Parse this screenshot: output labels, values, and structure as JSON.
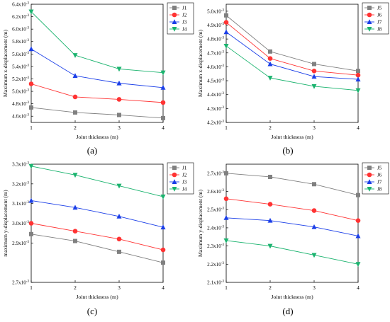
{
  "panels": [
    {
      "caption": "(a)"
    },
    {
      "caption": "(b)"
    },
    {
      "caption": "(c)"
    },
    {
      "caption": "(d)"
    }
  ],
  "chart_data": [
    {
      "type": "line",
      "xlabel": "Joint thickness (m)",
      "ylabel": "Maximum x-displacement (m)",
      "x": [
        1,
        2,
        3,
        4
      ],
      "xlim": [
        1,
        4
      ],
      "ylim": [
        0.0045,
        0.0064
      ],
      "yticks": [
        0.0046,
        0.0048,
        0.005,
        0.0052,
        0.0054,
        0.0056,
        0.0058,
        0.006,
        0.0062,
        0.0064
      ],
      "ytick_labels": [
        "4.6x10⁻³",
        "4.8x10⁻³",
        "5.0x10⁻³",
        "5.2x10⁻³",
        "5.4x10⁻³",
        "5.6x10⁻³",
        "5.8x10⁻³",
        "6.0x10⁻³",
        "6.2x10⁻³",
        "6.4x10⁻³"
      ],
      "legend_position": "top-right",
      "series": [
        {
          "name": "J1",
          "color": "#808080",
          "marker": "square",
          "values": [
            0.00474,
            0.00466,
            0.00462,
            0.00457
          ]
        },
        {
          "name": "J2",
          "color": "#ff3333",
          "marker": "circle",
          "values": [
            0.00512,
            0.00491,
            0.00487,
            0.00482
          ]
        },
        {
          "name": "J3",
          "color": "#1a3ee8",
          "marker": "triangle-up",
          "values": [
            0.00568,
            0.00525,
            0.00513,
            0.00506
          ]
        },
        {
          "name": "J4",
          "color": "#1ab36e",
          "marker": "triangle-down",
          "values": [
            0.00628,
            0.00558,
            0.00536,
            0.0053
          ]
        }
      ]
    },
    {
      "type": "line",
      "xlabel": "Joint thickness (m)",
      "ylabel": "Maximum x-displacement (m)",
      "x": [
        1,
        2,
        3,
        4
      ],
      "xlim": [
        1,
        4
      ],
      "ylim": [
        0.0042,
        0.00505
      ],
      "yticks": [
        0.0042,
        0.0043,
        0.0044,
        0.0045,
        0.0046,
        0.0047,
        0.0048,
        0.0049,
        0.005
      ],
      "ytick_labels": [
        "4.2x10⁻³",
        "4.3x10⁻³",
        "4.4x10⁻³",
        "4.5x10⁻³",
        "4.6x10⁻³",
        "4.7x10⁻³",
        "4.8x10⁻³",
        "4.9x10⁻³",
        "5.0x10⁻³"
      ],
      "legend_position": "top-right",
      "series": [
        {
          "name": "J5",
          "color": "#808080",
          "marker": "square",
          "values": [
            0.00497,
            0.00471,
            0.00462,
            0.00457
          ]
        },
        {
          "name": "J6",
          "color": "#ff3333",
          "marker": "circle",
          "values": [
            0.00492,
            0.00466,
            0.00457,
            0.00454
          ]
        },
        {
          "name": "J7",
          "color": "#1a3ee8",
          "marker": "triangle-up",
          "values": [
            0.00485,
            0.00462,
            0.00453,
            0.00451
          ]
        },
        {
          "name": "J8",
          "color": "#1ab36e",
          "marker": "triangle-down",
          "values": [
            0.00475,
            0.00452,
            0.00446,
            0.00443
          ]
        }
      ]
    },
    {
      "type": "line",
      "xlabel": "Joint thickness (m)",
      "ylabel": "maximum y-displacement (m)",
      "x": [
        1,
        2,
        3,
        4
      ],
      "xlim": [
        1,
        4
      ],
      "ylim": [
        0.0027,
        0.0033
      ],
      "yticks": [
        0.0027,
        0.0029,
        0.003,
        0.0031,
        0.0032,
        0.0033
      ],
      "ytick_labels": [
        "2.7x10⁻³",
        "2.9x10⁻³",
        "3.0x10⁻³",
        "3.1x10⁻³",
        "3.2x10⁻³",
        "3.3x10⁻³"
      ],
      "legend_position": "top-right",
      "series": [
        {
          "name": "J1",
          "color": "#808080",
          "marker": "square",
          "values": [
            0.002945,
            0.00291,
            0.002855,
            0.0028
          ]
        },
        {
          "name": "J2",
          "color": "#ff3333",
          "marker": "circle",
          "values": [
            0.003,
            0.00296,
            0.00292,
            0.002865
          ]
        },
        {
          "name": "J3",
          "color": "#1a3ee8",
          "marker": "triangle-up",
          "values": [
            0.003115,
            0.00308,
            0.003035,
            0.00298
          ]
        },
        {
          "name": "J4",
          "color": "#1ab36e",
          "marker": "triangle-down",
          "values": [
            0.00329,
            0.003245,
            0.00319,
            0.003135
          ]
        }
      ]
    },
    {
      "type": "line",
      "xlabel": "Joint thickness (m)",
      "ylabel": "Maximum y-displacement (m)",
      "x": [
        1,
        2,
        3,
        4
      ],
      "xlim": [
        1,
        4
      ],
      "ylim": [
        0.0021,
        0.00275
      ],
      "yticks": [
        0.0021,
        0.0022,
        0.0023,
        0.0024,
        0.0025,
        0.0026,
        0.0027
      ],
      "ytick_labels": [
        "2.1x10⁻³",
        "2.2x10⁻³",
        "2.3x10⁻³",
        "2.4x10⁻³",
        "2.5x10⁻³",
        "2.6x10⁻³",
        "2.7x10⁻³"
      ],
      "legend_position": "top-right",
      "series": [
        {
          "name": "J5",
          "color": "#808080",
          "marker": "square",
          "values": [
            0.0027,
            0.00268,
            0.00264,
            0.00258
          ]
        },
        {
          "name": "J6",
          "color": "#ff3333",
          "marker": "circle",
          "values": [
            0.00256,
            0.00253,
            0.002495,
            0.00244
          ]
        },
        {
          "name": "J7",
          "color": "#1a3ee8",
          "marker": "triangle-up",
          "values": [
            0.002455,
            0.00244,
            0.002405,
            0.002355
          ]
        },
        {
          "name": "J8",
          "color": "#1ab36e",
          "marker": "triangle-down",
          "values": [
            0.00233,
            0.0023,
            0.00225,
            0.0022
          ]
        }
      ]
    }
  ]
}
